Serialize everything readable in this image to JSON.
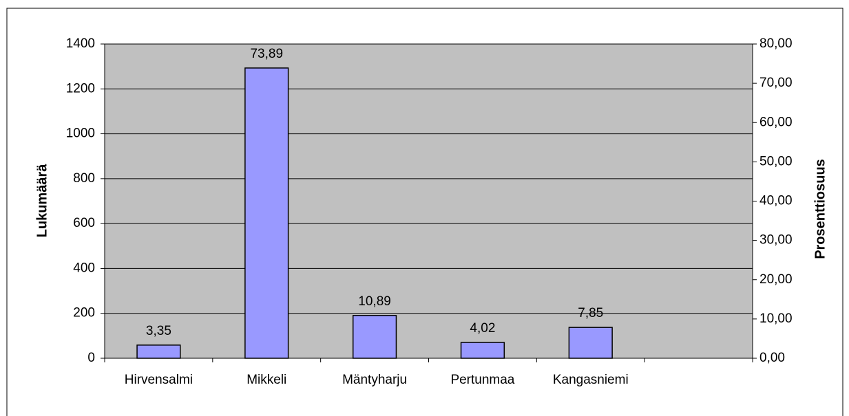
{
  "chart_data": {
    "type": "bar",
    "y_label": "Lukumäärä",
    "y2_label": "Prosenttiosuus",
    "categories": [
      "Hirvensalmi",
      "Mikkeli",
      "Mäntyharju",
      "Pertunmaa",
      "Kangasniemi",
      null
    ],
    "series": [
      {
        "name": null,
        "color": "#9999ff",
        "axis": "y2",
        "values": [
          3.35,
          73.89,
          10.89,
          4.02,
          7.85,
          null
        ],
        "value_labels": [
          "3,35",
          "73,89",
          "10,89",
          "4,02",
          "7,85",
          null
        ]
      }
    ],
    "ylim": [
      0,
      1400
    ],
    "yticks": [
      0,
      200,
      400,
      600,
      800,
      1000,
      1200,
      1400
    ],
    "y2lim": [
      0,
      80
    ],
    "y2ticks": [
      {
        "value": 0,
        "label": "0,00"
      },
      {
        "value": 10,
        "label": "10,00"
      },
      {
        "value": 20,
        "label": "20,00"
      },
      {
        "value": 30,
        "label": "30,00"
      },
      {
        "value": 40,
        "label": "40,00"
      },
      {
        "value": 50,
        "label": "50,00"
      },
      {
        "value": 60,
        "label": "60,00"
      },
      {
        "value": 70,
        "label": "70,00"
      },
      {
        "value": 80,
        "label": "80,00"
      }
    ],
    "grid": true,
    "plot_background": "#c0c0c0"
  }
}
